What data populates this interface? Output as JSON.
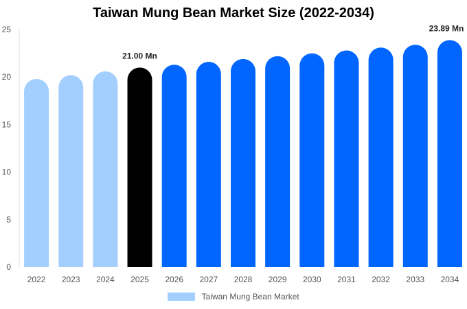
{
  "chart_data": {
    "type": "bar",
    "title": "Taiwan Mung Bean Market Size (2022-2034)",
    "categories": [
      "2022",
      "2023",
      "2024",
      "2025",
      "2026",
      "2027",
      "2028",
      "2029",
      "2030",
      "2031",
      "2032",
      "2033",
      "2034"
    ],
    "series": [
      {
        "name": "Taiwan Mung Bean Market",
        "values": [
          19.8,
          20.2,
          20.6,
          21.0,
          21.3,
          21.6,
          21.9,
          22.2,
          22.5,
          22.8,
          23.1,
          23.4,
          23.89
        ]
      }
    ],
    "bar_colors": [
      "#a3cfff",
      "#a3cfff",
      "#a3cfff",
      "#000000",
      "#0066ff",
      "#0066ff",
      "#0066ff",
      "#0066ff",
      "#0066ff",
      "#0066ff",
      "#0066ff",
      "#0066ff",
      "#0066ff"
    ],
    "data_labels": [
      {
        "category": "2025",
        "text": "21.00 Mn"
      },
      {
        "category": "2034",
        "text": "23.89 Mn"
      }
    ],
    "ylim": [
      0,
      25
    ],
    "yticks": [
      0,
      5,
      10,
      15,
      20,
      25
    ],
    "xlabel": "",
    "ylabel": "",
    "grid": false,
    "legend_position": "bottom-center",
    "legend_color": "#a3cfff"
  }
}
